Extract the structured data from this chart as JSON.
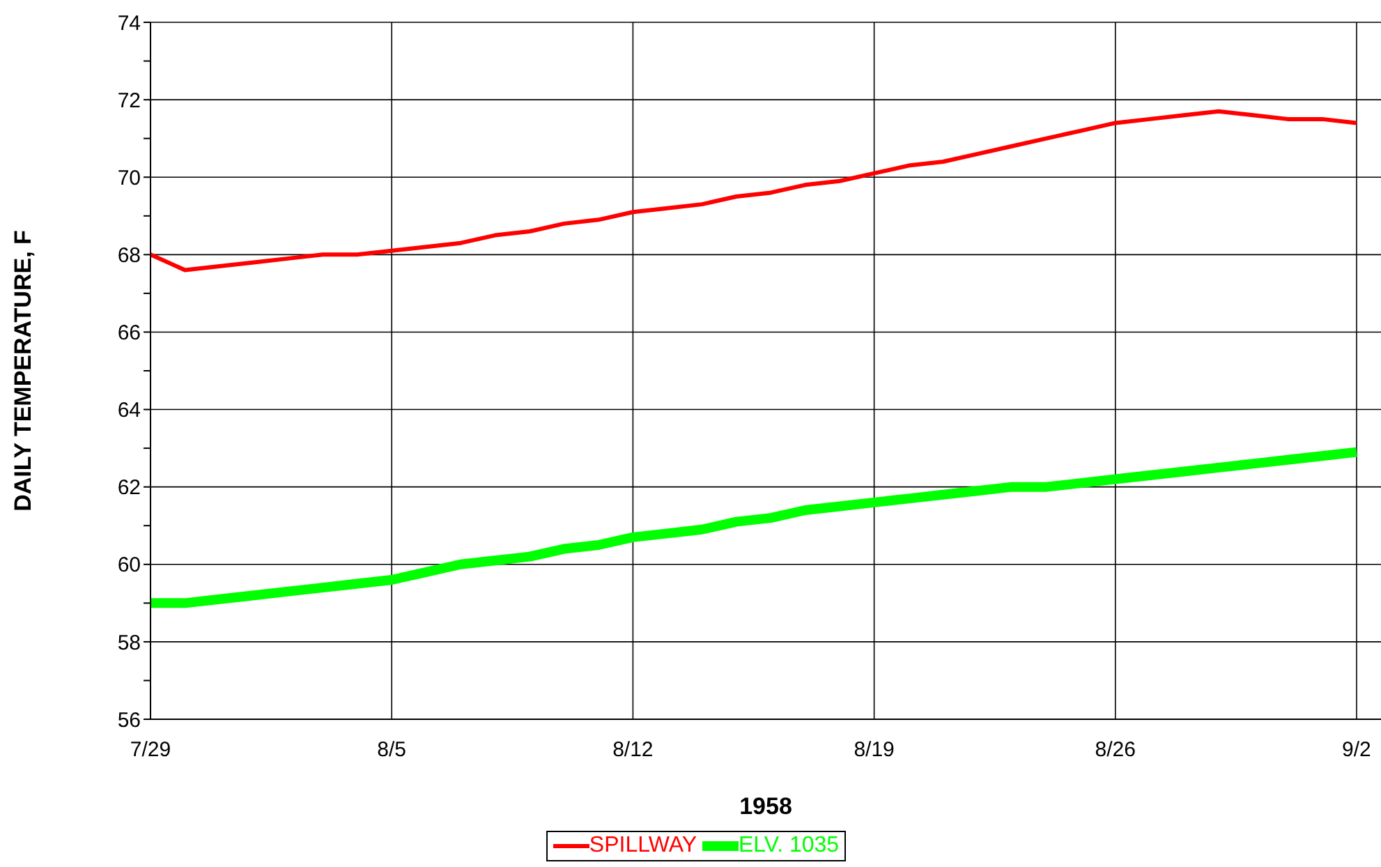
{
  "chart_data": {
    "type": "line",
    "xlabel": "1958",
    "ylabel": "DAILY TEMPERATURE, F",
    "x": [
      "1958-07-29",
      "1958-07-30",
      "1958-07-31",
      "1958-08-01",
      "1958-08-02",
      "1958-08-03",
      "1958-08-04",
      "1958-08-05",
      "1958-08-06",
      "1958-08-07",
      "1958-08-08",
      "1958-08-09",
      "1958-08-10",
      "1958-08-11",
      "1958-08-12",
      "1958-08-13",
      "1958-08-14",
      "1958-08-15",
      "1958-08-16",
      "1958-08-17",
      "1958-08-18",
      "1958-08-19",
      "1958-08-20",
      "1958-08-21",
      "1958-08-22",
      "1958-08-23",
      "1958-08-24",
      "1958-08-25",
      "1958-08-26",
      "1958-08-27",
      "1958-08-28",
      "1958-08-29",
      "1958-08-30",
      "1958-08-31",
      "1958-09-01",
      "1958-09-02"
    ],
    "series": [
      {
        "name": "SPILLWAY",
        "color": "#ff0000",
        "values": [
          68.0,
          67.6,
          67.7,
          67.8,
          67.9,
          68.0,
          68.0,
          68.1,
          68.2,
          68.3,
          68.5,
          68.6,
          68.8,
          68.9,
          69.1,
          69.2,
          69.3,
          69.5,
          69.6,
          69.8,
          69.9,
          70.1,
          70.3,
          70.4,
          70.6,
          70.8,
          71.0,
          71.2,
          71.4,
          71.5,
          71.6,
          71.7,
          71.6,
          71.5,
          71.5,
          71.4
        ]
      },
      {
        "name": "ELV. 1035",
        "color": "#00ff00",
        "values": [
          59.0,
          59.0,
          59.1,
          59.2,
          59.3,
          59.4,
          59.5,
          59.6,
          59.8,
          60.0,
          60.1,
          60.2,
          60.4,
          60.5,
          60.7,
          60.8,
          60.9,
          61.1,
          61.2,
          61.4,
          61.5,
          61.6,
          61.7,
          61.8,
          61.9,
          62.0,
          62.0,
          62.1,
          62.2,
          62.3,
          62.4,
          62.5,
          62.6,
          62.7,
          62.8,
          62.9
        ]
      }
    ],
    "xlim": [
      "1958-07-29",
      "1958-09-02T17:00"
    ],
    "xticks": [
      {
        "value": "1958-07-29",
        "label": "7/29"
      },
      {
        "value": "1958-08-05",
        "label": "8/5"
      },
      {
        "value": "1958-08-12",
        "label": "8/12"
      },
      {
        "value": "1958-08-19",
        "label": "8/19"
      },
      {
        "value": "1958-08-26",
        "label": "8/26"
      },
      {
        "value": "1958-09-02",
        "label": "9/2"
      }
    ],
    "ylim": [
      56,
      74
    ],
    "yticks": [
      56,
      {
        "value": 57,
        "label": null
      },
      58,
      {
        "value": 59,
        "label": null
      },
      60,
      {
        "value": 61,
        "label": null
      },
      62,
      {
        "value": 63,
        "label": null
      },
      64,
      {
        "value": 65,
        "label": null
      },
      66,
      {
        "value": 67,
        "label": null
      },
      68,
      {
        "value": 69,
        "label": null
      },
      70,
      {
        "value": 71,
        "label": null
      },
      72,
      {
        "value": 73,
        "label": null
      },
      74
    ],
    "grid": true,
    "legend": "bottom",
    "marker": "none",
    "line_style": "solid"
  }
}
